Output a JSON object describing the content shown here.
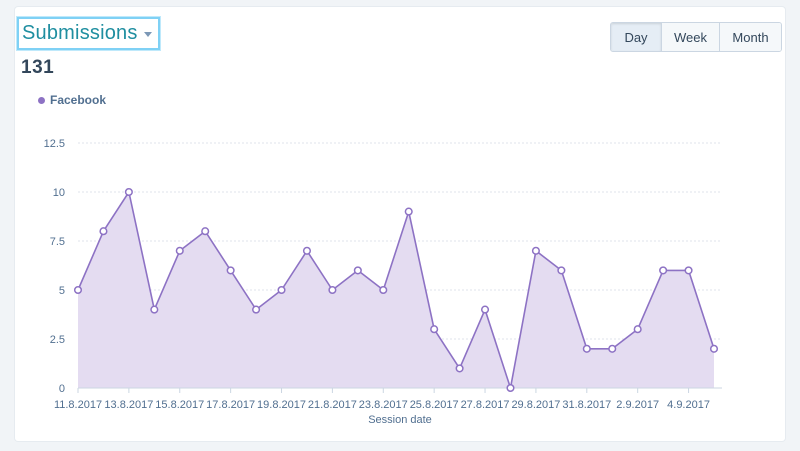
{
  "metric_selector": {
    "label": "Submissions"
  },
  "total": "131",
  "period_buttons": [
    {
      "label": "Day",
      "active": true
    },
    {
      "label": "Week",
      "active": false
    },
    {
      "label": "Month",
      "active": false
    }
  ],
  "chart_data": {
    "type": "area",
    "series": [
      {
        "name": "Facebook",
        "color": "#8d72c4",
        "values": [
          5,
          8,
          10,
          4,
          7,
          8,
          6,
          4,
          5,
          7,
          5,
          6,
          5,
          9,
          3,
          1,
          4,
          0,
          7,
          6,
          2,
          2,
          3,
          6,
          6,
          2
        ]
      }
    ],
    "x": [
      "11.8.2017",
      "12.8.2017",
      "13.8.2017",
      "14.8.2017",
      "15.8.2017",
      "16.8.2017",
      "17.8.2017",
      "18.8.2017",
      "19.8.2017",
      "20.8.2017",
      "21.8.2017",
      "22.8.2017",
      "23.8.2017",
      "24.8.2017",
      "25.8.2017",
      "26.8.2017",
      "27.8.2017",
      "28.8.2017",
      "29.8.2017",
      "30.8.2017",
      "31.8.2017",
      "1.9.2017",
      "2.9.2017",
      "3.9.2017",
      "4.9.2017",
      "5.9.2017"
    ],
    "x_tick_labels": [
      "11.8.2017",
      "13.8.2017",
      "15.8.2017",
      "17.8.2017",
      "19.8.2017",
      "21.8.2017",
      "23.8.2017",
      "25.8.2017",
      "27.8.2017",
      "29.8.2017",
      "31.8.2017",
      "2.9.2017",
      "4.9.2017"
    ],
    "y_ticks": [
      "0",
      "2.5",
      "5",
      "7.5",
      "10",
      "12.5"
    ],
    "ylim": [
      0,
      12.5
    ],
    "xlabel": "Session date",
    "ylabel": "",
    "grid": true,
    "legend_position": "top-left"
  }
}
